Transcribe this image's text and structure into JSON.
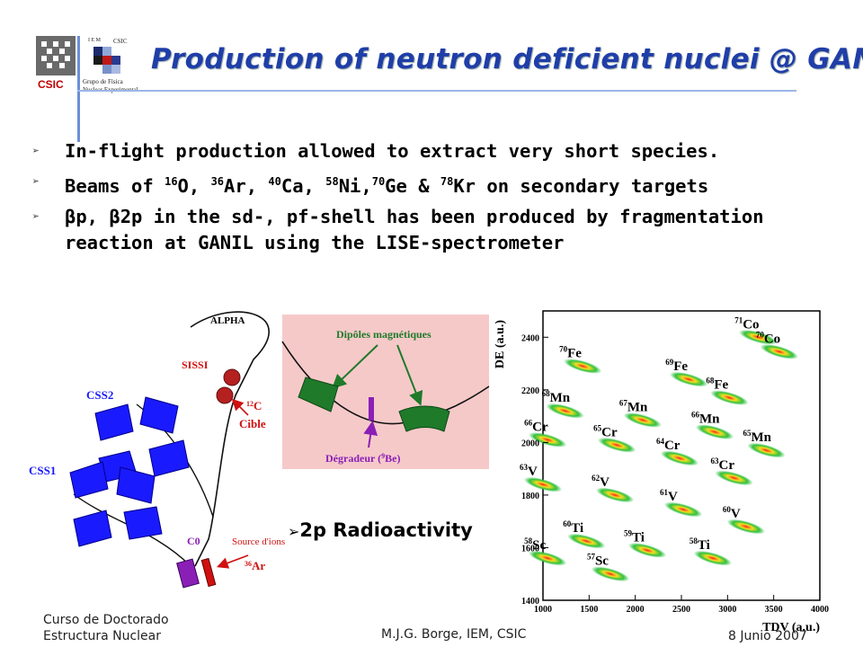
{
  "logo": {
    "csic": "CSIC",
    "csic_small": "CSIC",
    "iem": "I E M",
    "group_line1": "Grupo de Física",
    "group_line2": "Nuclear Experimental"
  },
  "title": "Production of neutron deficient nuclei @ GANIL",
  "bullets": [
    {
      "id": "b1",
      "parts": [
        {
          "t": "In-flight production allowed to extract very short species."
        }
      ]
    },
    {
      "id": "b2",
      "parts": [
        {
          "t": "Beams of "
        },
        {
          "sup": "16"
        },
        {
          "t": "O, "
        },
        {
          "sup": "36"
        },
        {
          "t": "Ar, "
        },
        {
          "sup": "40"
        },
        {
          "t": "Ca, "
        },
        {
          "sup": "58"
        },
        {
          "t": "Ni,"
        },
        {
          "sup": "70"
        },
        {
          "t": "Ge & "
        },
        {
          "sup": "78"
        },
        {
          "t": "Kr on secondary targets"
        }
      ]
    },
    {
      "id": "b3",
      "parts": [
        {
          "t": "βp, β2p in the sd-, pf-shell has been produced by fragmentation"
        },
        {
          "br": true
        },
        {
          "t": "reaction at GANIL using the LISE-spectrometer"
        }
      ]
    }
  ],
  "facility": {
    "alpha": "ALPHA",
    "sissi": "SISSI",
    "css2": "CSS2",
    "css1": "CSS1",
    "c0": "C0",
    "c12_mass": "12",
    "c12": "C",
    "cible": "Cible",
    "source": "Source d'ions",
    "ar_mass": "36",
    "ar": "Ar",
    "dipoles": "Dipôles magnétiques",
    "degradeur": "Dégradeur (",
    "be_mass": "9",
    "be": "Be)"
  },
  "radioactivity_label": "2p Radioactivity",
  "chart_data": {
    "type": "scatter",
    "xlabel": "TDV (a.u.)",
    "ylabel": "DE (a.u.)",
    "xlim": [
      1000,
      4000
    ],
    "ylim": [
      1400,
      2500
    ],
    "xticks": [
      1000,
      1500,
      2000,
      2500,
      3000,
      3500,
      4000
    ],
    "yticks": [
      1400,
      1600,
      1800,
      2000,
      2200,
      2400
    ],
    "islands": [
      {
        "z": 27,
        "a": 71,
        "sym": "Co",
        "x": 3330,
        "y": 2400
      },
      {
        "z": 27,
        "a": 70,
        "sym": "Co",
        "x": 3560,
        "y": 2345
      },
      {
        "z": 26,
        "a": 70,
        "sym": "Fe",
        "x": 1430,
        "y": 2290
      },
      {
        "z": 26,
        "a": 69,
        "sym": "Fe",
        "x": 2580,
        "y": 2240
      },
      {
        "z": 26,
        "a": 68,
        "sym": "Fe",
        "x": 3020,
        "y": 2170
      },
      {
        "z": 25,
        "a": 68,
        "sym": "Mn",
        "x": 1240,
        "y": 2120
      },
      {
        "z": 25,
        "a": 67,
        "sym": "Mn",
        "x": 2080,
        "y": 2085
      },
      {
        "z": 25,
        "a": 66,
        "sym": "Mn",
        "x": 2860,
        "y": 2040
      },
      {
        "z": 25,
        "a": 65,
        "sym": "Mn",
        "x": 3420,
        "y": 1970
      },
      {
        "z": 24,
        "a": 66,
        "sym": "Cr",
        "x": 1050,
        "y": 2010
      },
      {
        "z": 24,
        "a": 65,
        "sym": "Cr",
        "x": 1800,
        "y": 1990
      },
      {
        "z": 24,
        "a": 64,
        "sym": "Cr",
        "x": 2480,
        "y": 1940
      },
      {
        "z": 24,
        "a": 63,
        "sym": "Cr",
        "x": 3070,
        "y": 1865
      },
      {
        "z": 23,
        "a": 63,
        "sym": "V",
        "x": 1000,
        "y": 1840
      },
      {
        "z": 23,
        "a": 62,
        "sym": "V",
        "x": 1780,
        "y": 1800
      },
      {
        "z": 23,
        "a": 61,
        "sym": "V",
        "x": 2520,
        "y": 1745
      },
      {
        "z": 23,
        "a": 60,
        "sym": "V",
        "x": 3200,
        "y": 1680
      },
      {
        "z": 22,
        "a": 60,
        "sym": "Ti",
        "x": 1470,
        "y": 1625
      },
      {
        "z": 22,
        "a": 59,
        "sym": "Ti",
        "x": 2130,
        "y": 1590
      },
      {
        "z": 22,
        "a": 58,
        "sym": "Ti",
        "x": 2840,
        "y": 1560
      },
      {
        "z": 21,
        "a": 58,
        "sym": "Sc",
        "x": 1050,
        "y": 1560
      },
      {
        "z": 21,
        "a": 57,
        "sym": "Sc",
        "x": 1730,
        "y": 1500
      }
    ]
  },
  "footer": {
    "course_line1": "Curso de Doctorado",
    "course_line2": "Estructura Nuclear",
    "author": "M.J.G. Borge, IEM, CSIC",
    "date": "8 Junio 2007"
  },
  "colors": {
    "title": "#1f3ea8",
    "cyclotron": "#1a1aff",
    "pink_panel": "#f6c9c9",
    "dipole": "#1f7a2a",
    "degrader": "#8a1fb5",
    "target": "#b52020",
    "annotation_red": "#d01010"
  }
}
